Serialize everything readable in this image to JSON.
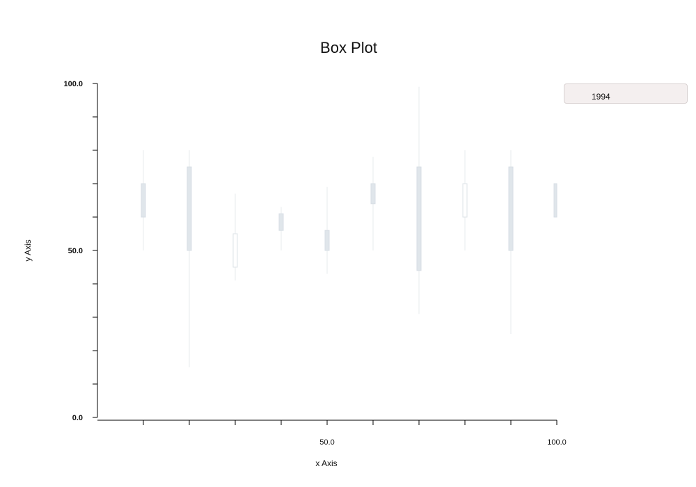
{
  "chart_data": {
    "type": "box",
    "title": "Box Plot",
    "xlabel": "x Axis",
    "ylabel": "y Axis",
    "xlim": [
      0,
      100
    ],
    "ylim": [
      0,
      100
    ],
    "xticks": [
      10,
      20,
      30,
      40,
      50,
      60,
      70,
      80,
      90,
      100
    ],
    "xtick_labels": [
      "50.0",
      "100.0"
    ],
    "xtick_label_values": [
      50,
      100
    ],
    "yticks": [
      0,
      10,
      20,
      30,
      40,
      50,
      60,
      70,
      80,
      90,
      100
    ],
    "ytick_labels": [
      "0.0",
      "50.0",
      "100.0"
    ],
    "ytick_label_values": [
      0,
      50,
      100
    ],
    "grid": false,
    "legend_position": "top-right",
    "series": [
      {
        "name": "1994",
        "color": "#e0e6eb",
        "boxes": [
          {
            "x": 10,
            "min": 50,
            "q1": 60,
            "q3": 70,
            "max": 80
          },
          {
            "x": 20,
            "min": 15,
            "q1": 50,
            "q3": 75,
            "max": 80
          },
          {
            "x": 30,
            "min": 41,
            "q1": 45,
            "q3": 55,
            "max": 67
          },
          {
            "x": 40,
            "min": 50,
            "q1": 56,
            "q3": 61,
            "max": 63
          },
          {
            "x": 50,
            "min": 43,
            "q1": 50,
            "q3": 56,
            "max": 69
          },
          {
            "x": 60,
            "min": 50,
            "q1": 64,
            "q3": 70,
            "max": 78
          },
          {
            "x": 70,
            "min": 31,
            "q1": 44,
            "q3": 75,
            "max": 99
          },
          {
            "x": 80,
            "min": 50,
            "q1": 60,
            "q3": 70,
            "max": 80
          },
          {
            "x": 90,
            "min": 25,
            "q1": 50,
            "q3": 75,
            "max": 80
          },
          {
            "x": 100,
            "min": 60,
            "q1": 60,
            "q3": 70,
            "max": 70
          }
        ]
      }
    ]
  }
}
